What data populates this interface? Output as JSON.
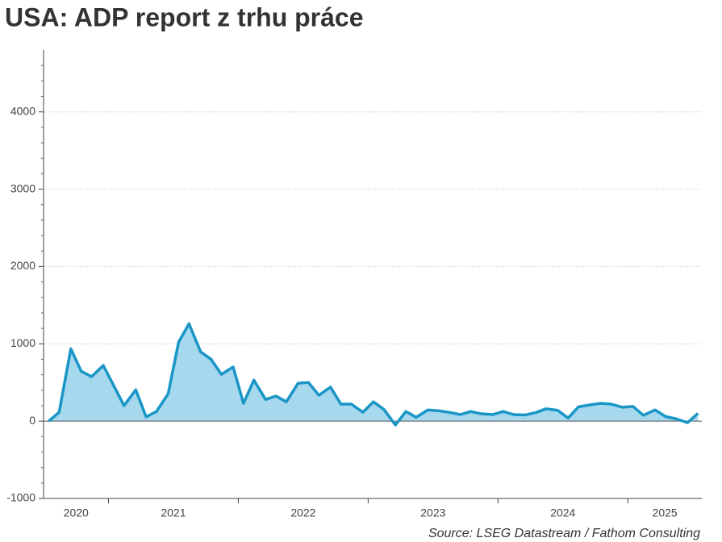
{
  "chart_data": {
    "type": "area",
    "title": "USA: ADP report z trhu práce",
    "source": "Source: LSEG Datastream / Fathom Consulting",
    "x": [
      2020.54,
      2020.62,
      2020.71,
      2020.79,
      2020.87,
      2020.96,
      2021.04,
      2021.12,
      2021.21,
      2021.29,
      2021.37,
      2021.46,
      2021.54,
      2021.62,
      2021.71,
      2021.79,
      2021.87,
      2021.96,
      2022.04,
      2022.12,
      2022.21,
      2022.29,
      2022.37,
      2022.46,
      2022.54,
      2022.62,
      2022.71,
      2022.79,
      2022.87,
      2022.96,
      2023.04,
      2023.12,
      2023.21,
      2023.29,
      2023.37,
      2023.46,
      2023.54,
      2023.62,
      2023.71,
      2023.79,
      2023.87,
      2023.96,
      2024.04,
      2024.12,
      2024.21,
      2024.29,
      2024.37,
      2024.46,
      2024.54,
      2024.62,
      2024.71,
      2024.79,
      2024.87,
      2024.96,
      2025.04,
      2025.12,
      2025.21,
      2025.29,
      2025.37,
      2025.46,
      2025.54
    ],
    "series": [
      {
        "color": "#1a96c6",
        "fill": "#a6d8ee",
        "values": [
          0,
          115,
          935,
          645,
          575,
          720,
          460,
          200,
          405,
          55,
          125,
          355,
          1020,
          1260,
          895,
          800,
          605,
          700,
          230,
          530,
          280,
          325,
          250,
          490,
          500,
          335,
          440,
          220,
          220,
          115,
          250,
          155,
          -50,
          125,
          50,
          145,
          135,
          115,
          85,
          125,
          95,
          85,
          125,
          85,
          80,
          110,
          160,
          140,
          40,
          185,
          210,
          230,
          220,
          180,
          190,
          75,
          145,
          60,
          30,
          -20,
          100
        ]
      }
    ],
    "xlim": [
      2020.5,
      2025.57
    ],
    "xticks": [
      2021,
      2022,
      2023,
      2024,
      2025
    ],
    "xlabels": [
      "2020",
      "2021",
      "2022",
      "2023",
      "2024",
      "2025"
    ],
    "ylim": [
      -1000,
      4800
    ],
    "yticks": [
      -1000,
      0,
      1000,
      2000,
      3000,
      4000
    ],
    "grid": true
  }
}
